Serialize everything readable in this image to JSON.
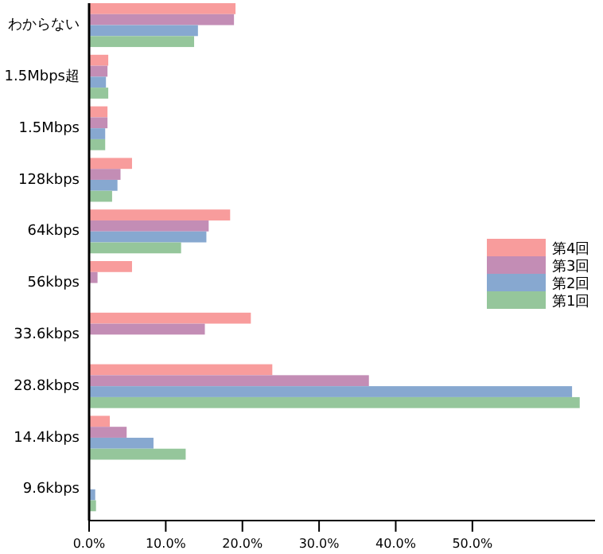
{
  "chart_data": {
    "type": "bar",
    "orientation": "horizontal",
    "categories": [
      "わからない",
      "1.5Mbps超",
      "1.5Mbps",
      "128kbps",
      "64kbps",
      "56kbps",
      "33.6kbps",
      "28.8kbps",
      "14.4kbps",
      "9.6kbps"
    ],
    "series": [
      {
        "name": "第4回",
        "color": "#f89c9c",
        "values": [
          19.1,
          2.5,
          2.4,
          5.6,
          18.4,
          5.6,
          21.1,
          23.9,
          2.7,
          null
        ]
      },
      {
        "name": "第3回",
        "color": "#c38db5",
        "values": [
          18.9,
          2.4,
          2.4,
          4.1,
          15.6,
          1.1,
          15.1,
          36.5,
          4.9,
          null
        ]
      },
      {
        "name": "第2回",
        "color": "#87a8d0",
        "values": [
          14.2,
          2.2,
          2.1,
          3.7,
          15.3,
          null,
          null,
          63,
          8.4,
          0.8
        ]
      },
      {
        "name": "第1回",
        "color": "#95c69b",
        "values": [
          13.7,
          2.5,
          2.1,
          3.0,
          12.0,
          null,
          null,
          64,
          12.6,
          0.9
        ]
      }
    ],
    "xlim": [
      0,
      66
    ],
    "xticks": [
      {
        "value": 0,
        "label": "0.0%"
      },
      {
        "value": 10,
        "label": "10.0%"
      },
      {
        "value": 20,
        "label": "20.0%"
      },
      {
        "value": 30,
        "label": "30.0%"
      },
      {
        "value": 40,
        "label": "40.0%"
      },
      {
        "value": 50,
        "label": "50.0%"
      }
    ],
    "legend": "right",
    "grid": false
  }
}
